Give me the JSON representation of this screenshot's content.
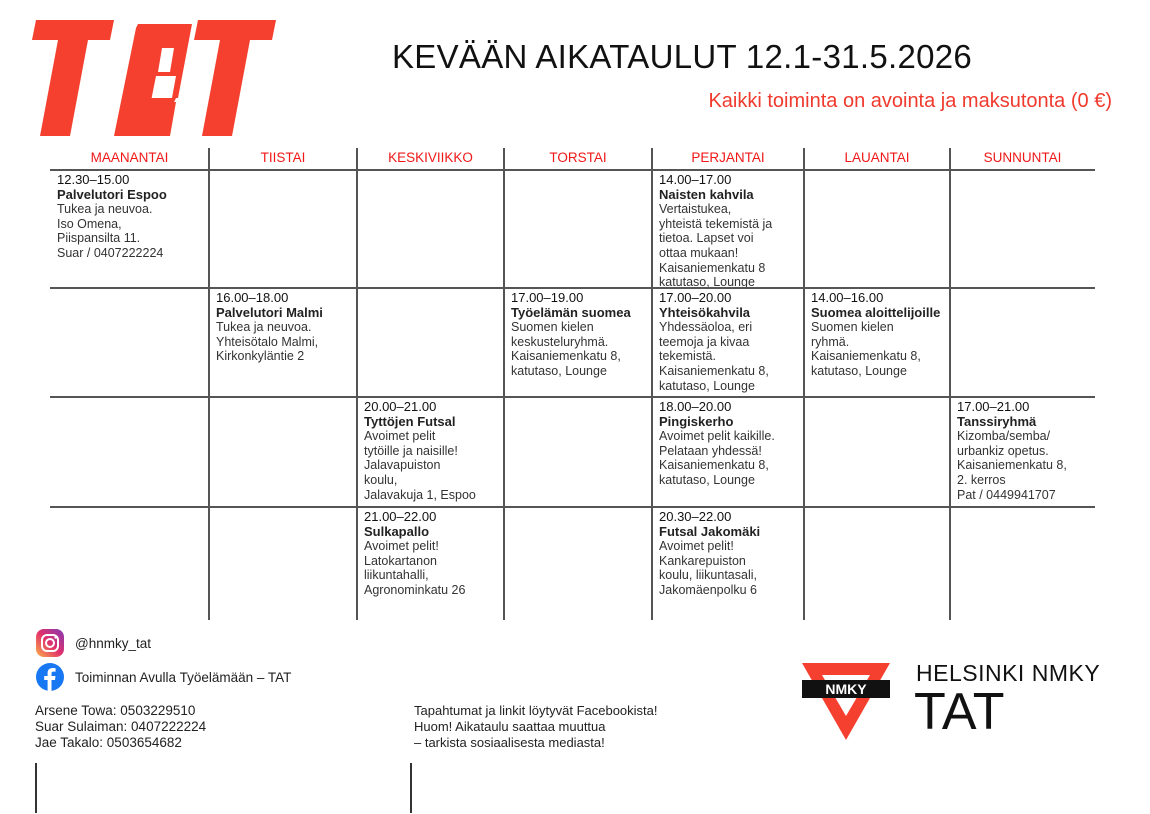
{
  "logo_text": "TAT",
  "title": "KEVÄÄN AIKATAULUT 12.1-31.5.2026",
  "subtitle": "Kaikki toiminta on avointa ja maksutonta (0 €)",
  "colors": {
    "accent": "#f03a2e",
    "header": "#f01818",
    "grid": "#555555"
  },
  "days": [
    "MAANANTAI",
    "TIISTAI",
    "KESKIVIIKKO",
    "TORSTAI",
    "PERJANTAI",
    "LAUANTAI",
    "SUNNUNTAI"
  ],
  "rows": [
    [
      {
        "time": "12.30–15.00",
        "title": "Palvelutori Espoo",
        "lines": [
          "Tukea ja neuvoa.",
          "Iso Omena,",
          "Piispansilta 11.",
          "Suar / 0407222224"
        ]
      },
      null,
      null,
      null,
      {
        "time": "14.00–17.00",
        "title": "Naisten kahvila",
        "lines": [
          "Vertaistukea,",
          "yhteistä tekemistä ja",
          "tietoa. Lapset voi",
          "ottaa mukaan!",
          "Kaisaniemenkatu 8",
          "katutaso, Lounge"
        ]
      },
      null,
      null
    ],
    [
      null,
      {
        "time": "16.00–18.00",
        "title": "Palvelutori Malmi",
        "lines": [
          "Tukea ja neuvoa.",
          "Yhteisötalo Malmi,",
          "Kirkonkyläntie 2"
        ]
      },
      null,
      {
        "time": "17.00–19.00",
        "title": "Työelämän suomea",
        "lines": [
          "Suomen kielen",
          "keskusteluryhmä.",
          "Kaisaniemenkatu 8,",
          "katutaso, Lounge"
        ]
      },
      {
        "time": "17.00–20.00",
        "title": "Yhteisökahvila",
        "lines": [
          "Yhdessäoloa, eri",
          "teemoja ja kivaa",
          "tekemistä.",
          "Kaisaniemenkatu 8,",
          "katutaso, Lounge"
        ]
      },
      {
        "time": "14.00–16.00",
        "title": "Suomea aloittelijoille",
        "lines": [
          "Suomen kielen",
          "ryhmä.",
          "Kaisaniemenkatu 8,",
          "katutaso, Lounge"
        ]
      },
      null
    ],
    [
      null,
      null,
      {
        "time": "20.00–21.00",
        "title": "Tyttöjen Futsal",
        "lines": [
          "Avoimet pelit",
          "tytöille ja naisille!",
          "Jalavapuiston",
          "koulu,",
          "Jalavakuja 1, Espoo"
        ]
      },
      null,
      {
        "time": "18.00–20.00",
        "title": "Pingiskerho",
        "lines": [
          "Avoimet pelit kaikille.",
          "Pelataan yhdessä!",
          "Kaisaniemenkatu 8,",
          "katutaso, Lounge"
        ]
      },
      null,
      {
        "time": "17.00–21.00",
        "title": "Tanssiryhmä",
        "lines": [
          "Kizomba/semba/",
          "urbankiz opetus.",
          "Kaisaniemenkatu 8,",
          "2. kerros",
          "Pat / 0449941707"
        ]
      }
    ],
    [
      null,
      null,
      {
        "time": "21.00–22.00",
        "title": "Sulkapallo",
        "lines": [
          "Avoimet pelit!",
          "Latokartanon",
          "liikuntahalli,",
          "Agronominkatu 26"
        ]
      },
      null,
      {
        "time": "20.30–22.00",
        "title": "Futsal Jakomäki",
        "lines": [
          "Avoimet pelit!",
          "Kankarepuiston",
          "koulu, liikuntasali,",
          "Jakomäenpolku 6"
        ]
      },
      null,
      null
    ]
  ],
  "footer": {
    "instagram": "@hnmky_tat",
    "facebook": "Toiminnan Avulla Työelämään – TAT",
    "contacts": [
      "Arsene Towa: 0503229510",
      "Suar Sulaiman: 0407222224",
      "Jae Takalo: 0503654682"
    ],
    "notes": [
      "Tapahtumat ja linkit löytyvät Facebookista!",
      "Huom! Aikataulu saattaa muuttua",
      "– tarkista sosiaalisesta mediasta!"
    ],
    "org_badge": "NMKY",
    "org_name": "HELSINKI NMKY",
    "org_sub": "TAT"
  }
}
